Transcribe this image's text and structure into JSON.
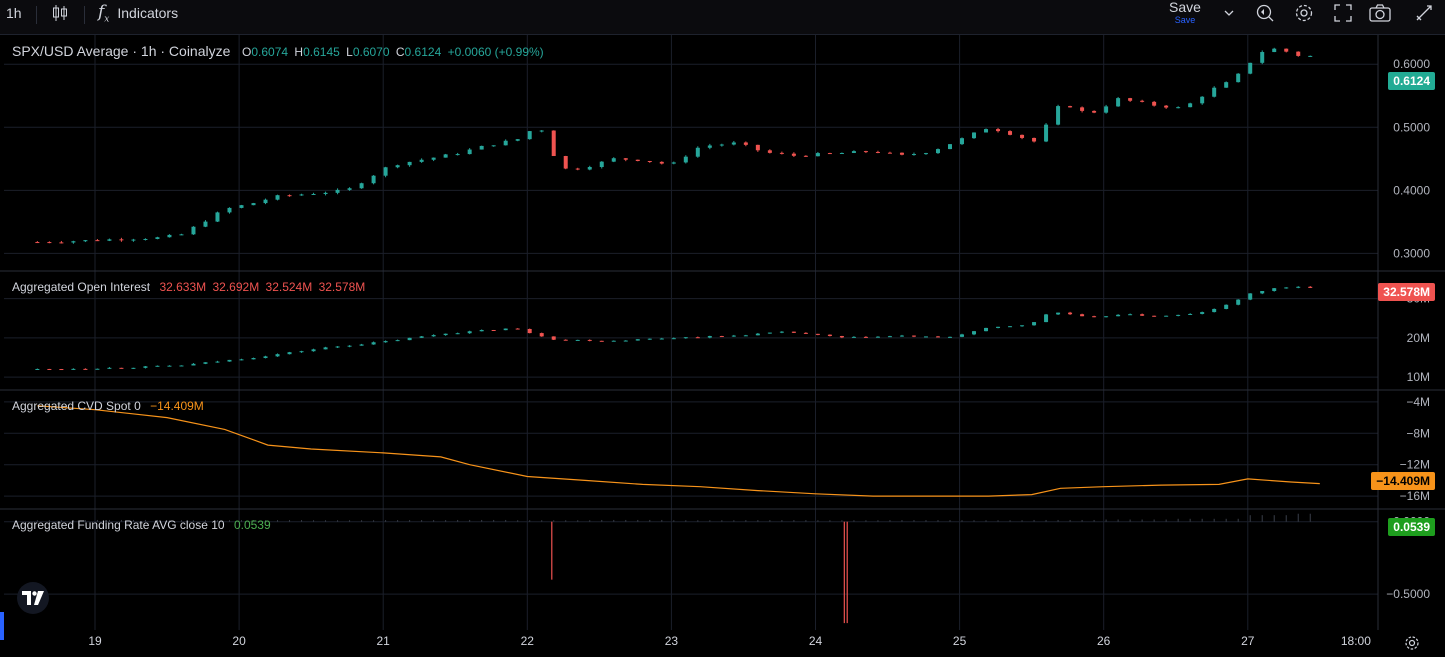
{
  "toolbar": {
    "interval": "1h",
    "indicators_label": "Indicators",
    "save_label": "Save",
    "save_sub": "Save",
    "icons": [
      "candles-icon",
      "indicators-icon",
      "chevron-down-icon",
      "replay-icon",
      "gear-icon",
      "fullscreen-icon",
      "camera-icon",
      "drawing-icon"
    ]
  },
  "panes": {
    "price": {
      "title": "SPX/USD Average · 1h · Coinalyze",
      "o_label": "O",
      "o": "0.6074",
      "h_label": "H",
      "h": "0.6145",
      "l_label": "L",
      "l": "0.6070",
      "c_label": "C",
      "c": "0.6124",
      "change": "+0.0060 (+0.99%)",
      "last_tag": "0.6124",
      "axis_labels": [
        "0.6000",
        "0.5000",
        "0.4000",
        "0.3000"
      ]
    },
    "oi": {
      "title": "Aggregated Open Interest",
      "values": [
        "32.633M",
        "32.692M",
        "32.524M",
        "32.578M"
      ],
      "last_tag": "32.578M",
      "axis_labels": [
        "30M",
        "20M",
        "10M"
      ]
    },
    "cvd": {
      "title": "Aggregated CVD Spot 0",
      "value": "−14.409M",
      "last_tag": "−14.409M",
      "axis_labels": [
        "−4M",
        "−8M",
        "−12M",
        "−16M"
      ]
    },
    "funding": {
      "title": "Aggregated Funding Rate AVG close 10",
      "value": "0.0539",
      "last_tag": "0.0539",
      "axis_labels": [
        "0.0000",
        "−0.5000"
      ]
    }
  },
  "time_axis": {
    "labels": [
      "19",
      "20",
      "21",
      "22",
      "23",
      "24",
      "25",
      "26",
      "27",
      "18:00"
    ]
  },
  "colors": {
    "up": "#26a69a",
    "down": "#ef5350",
    "cvd": "#f7931a",
    "funding_up": "#26a69a",
    "funding_tag": "#22ab94",
    "background": "#000000",
    "grid": "#1b1f2a"
  },
  "chart_data": [
    {
      "type": "line",
      "name": "price",
      "x_days": [
        18.6,
        18.9,
        19.2,
        19.45,
        19.6,
        19.75,
        19.9,
        20.1,
        20.25,
        20.5,
        20.75,
        20.9,
        21.05,
        21.3,
        21.5,
        21.7,
        21.95,
        22.05,
        22.15,
        22.2,
        22.3,
        22.45,
        22.6,
        22.8,
        23.0,
        23.2,
        23.45,
        23.65,
        23.85,
        24.1,
        24.4,
        24.6,
        24.8,
        25.0,
        25.2,
        25.35,
        25.55,
        25.65,
        25.75,
        25.9,
        26.1,
        26.35,
        26.55,
        26.75,
        26.9,
        27.0,
        27.1,
        27.2,
        27.35,
        27.5
      ],
      "y": [
        0.318,
        0.32,
        0.323,
        0.325,
        0.33,
        0.35,
        0.37,
        0.38,
        0.39,
        0.395,
        0.4,
        0.42,
        0.44,
        0.45,
        0.458,
        0.47,
        0.482,
        0.5,
        0.492,
        0.438,
        0.432,
        0.44,
        0.45,
        0.448,
        0.44,
        0.47,
        0.475,
        0.46,
        0.455,
        0.458,
        0.462,
        0.455,
        0.462,
        0.48,
        0.5,
        0.49,
        0.475,
        0.53,
        0.535,
        0.52,
        0.545,
        0.535,
        0.53,
        0.56,
        0.575,
        0.6,
        0.62,
        0.625,
        0.614,
        0.612
      ],
      "ylim": [
        0.28,
        0.64
      ]
    },
    {
      "type": "line",
      "name": "Aggregated Open Interest",
      "x_days": [
        18.6,
        19.2,
        19.6,
        20.1,
        20.6,
        21.0,
        21.4,
        21.9,
        22.2,
        22.6,
        23.0,
        23.4,
        23.8,
        24.2,
        24.6,
        24.9,
        25.2,
        25.5,
        25.6,
        25.7,
        25.9,
        26.1,
        26.4,
        26.6,
        26.8,
        27.0,
        27.15,
        27.3,
        27.45
      ],
      "y": [
        12.0,
        12.4,
        13.0,
        15.0,
        17.5,
        19.0,
        21.0,
        22.5,
        19.5,
        19.3,
        20.0,
        20.5,
        21.5,
        20.0,
        20.5,
        20.0,
        22.5,
        23.5,
        26.0,
        26.5,
        25.0,
        26.0,
        25.5,
        26.0,
        27.5,
        31.0,
        32.5,
        33.0,
        32.6
      ],
      "ylim": [
        8,
        36
      ]
    },
    {
      "type": "line",
      "name": "Aggregated CVD Spot 0",
      "x_days": [
        18.6,
        19.0,
        19.5,
        19.9,
        20.2,
        20.5,
        21.0,
        21.4,
        21.6,
        22.0,
        22.4,
        22.8,
        23.2,
        23.6,
        24.0,
        24.4,
        24.8,
        25.2,
        25.5,
        25.7,
        26.0,
        26.4,
        26.8,
        27.0,
        27.3,
        27.5
      ],
      "y": [
        -4.5,
        -5.0,
        -6.0,
        -7.5,
        -9.5,
        -10.0,
        -10.5,
        -11.0,
        -12.0,
        -13.5,
        -14.0,
        -14.5,
        -14.8,
        -15.3,
        -15.7,
        -16.0,
        -16.0,
        -16.0,
        -15.8,
        -15.0,
        -14.8,
        -14.6,
        -14.5,
        -13.8,
        -14.2,
        -14.4
      ],
      "ylim": [
        -17,
        -3
      ]
    },
    {
      "type": "bar",
      "name": "Aggregated Funding Rate AVG close 10",
      "x_days": [
        18.6,
        19.0,
        19.5,
        20.0,
        20.5,
        21.0,
        21.5,
        21.9,
        22.17,
        22.5,
        23.0,
        23.5,
        24.0,
        24.2,
        24.22,
        24.5,
        25.0,
        25.5,
        26.0,
        26.5,
        27.0,
        27.3,
        27.5
      ],
      "y": [
        0.01,
        0.012,
        0.01,
        0.011,
        0.01,
        0.011,
        0.012,
        0.01,
        -0.4,
        0.012,
        0.01,
        0.011,
        0.01,
        -0.7,
        -0.7,
        0.011,
        0.01,
        0.012,
        0.015,
        0.02,
        0.045,
        0.055,
        0.054
      ],
      "ylim": [
        -0.72,
        0.06
      ]
    }
  ]
}
